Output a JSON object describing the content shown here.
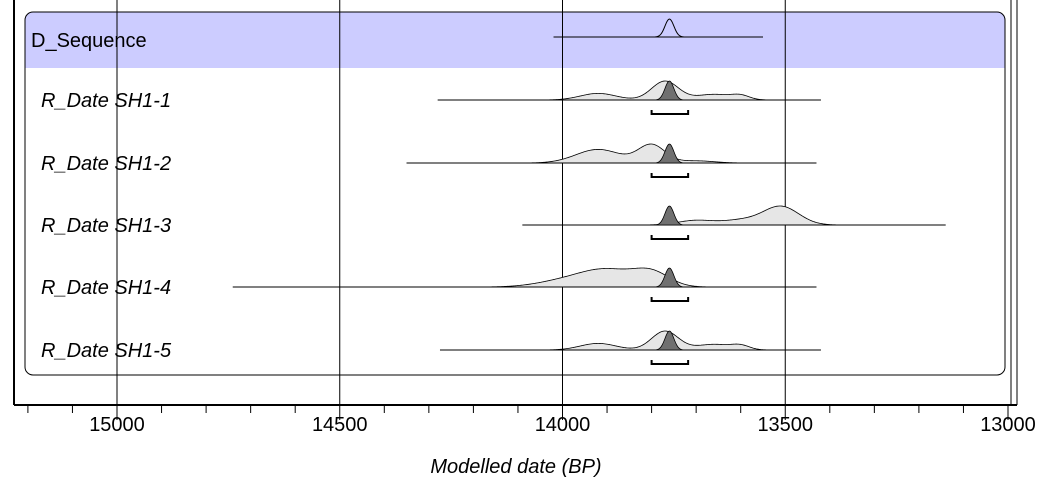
{
  "chart_data": {
    "type": "area",
    "xlabel": "Modelled date (BP)",
    "xlim": [
      15225,
      13000
    ],
    "x_reversed": true,
    "major_ticks": [
      15000,
      14500,
      14000,
      13500,
      13000
    ],
    "minor_tick_step": 100,
    "gridlines": [
      15000,
      14500,
      14000,
      13500
    ],
    "colors": {
      "sequence_band": "#ccccff",
      "prior_fill": "#e6e6e6",
      "posterior_fill": "#707070",
      "line": "#000000"
    },
    "sequence": {
      "name": "D_Sequence",
      "range": [
        14020,
        13550
      ],
      "peak": 13760,
      "sd": 10
    },
    "rows": [
      {
        "label_prefix": "R_Date",
        "label_id": "SH1-1",
        "prior_range": [
          14280,
          13420
        ],
        "prior_components": [
          {
            "mu": 13920,
            "sd": 40,
            "w": 0.35
          },
          {
            "mu": 13770,
            "sd": 30,
            "w": 1.0
          },
          {
            "mu": 13660,
            "sd": 40,
            "w": 0.3
          },
          {
            "mu": 13600,
            "sd": 20,
            "w": 0.2
          }
        ],
        "posterior": {
          "mu": 13760,
          "sd": 10
        },
        "hpd_range": [
          13800,
          13718
        ]
      },
      {
        "label_prefix": "R_Date",
        "label_id": "SH1-2",
        "prior_range": [
          14350,
          13430
        ],
        "prior_components": [
          {
            "mu": 13920,
            "sd": 50,
            "w": 0.75
          },
          {
            "mu": 13800,
            "sd": 30,
            "w": 1.0
          },
          {
            "mu": 13700,
            "sd": 40,
            "w": 0.12
          }
        ],
        "posterior": {
          "mu": 13760,
          "sd": 10
        },
        "hpd_range": [
          13800,
          13718
        ]
      },
      {
        "label_prefix": "R_Date",
        "label_id": "SH1-3",
        "prior_range": [
          14090,
          13140
        ],
        "prior_components": [
          {
            "mu": 13700,
            "sd": 40,
            "w": 0.25
          },
          {
            "mu": 13600,
            "sd": 40,
            "w": 0.25
          },
          {
            "mu": 13510,
            "sd": 40,
            "w": 1.0
          }
        ],
        "posterior": {
          "mu": 13760,
          "sd": 10
        },
        "hpd_range": [
          13800,
          13718
        ]
      },
      {
        "label_prefix": "R_Date",
        "label_id": "SH1-4",
        "prior_range": [
          14740,
          13430
        ],
        "prior_components": [
          {
            "mu": 14000,
            "sd": 60,
            "w": 0.3
          },
          {
            "mu": 13900,
            "sd": 60,
            "w": 0.9
          },
          {
            "mu": 13800,
            "sd": 40,
            "w": 0.75
          }
        ],
        "posterior": {
          "mu": 13760,
          "sd": 10
        },
        "hpd_range": [
          13800,
          13718
        ]
      },
      {
        "label_prefix": "R_Date",
        "label_id": "SH1-5",
        "prior_range": [
          14275,
          13420
        ],
        "prior_components": [
          {
            "mu": 13920,
            "sd": 40,
            "w": 0.35
          },
          {
            "mu": 13770,
            "sd": 30,
            "w": 1.0
          },
          {
            "mu": 13660,
            "sd": 40,
            "w": 0.3
          },
          {
            "mu": 13600,
            "sd": 20,
            "w": 0.2
          }
        ],
        "posterior": {
          "mu": 13760,
          "sd": 10
        },
        "hpd_range": [
          13800,
          13718
        ]
      }
    ]
  }
}
